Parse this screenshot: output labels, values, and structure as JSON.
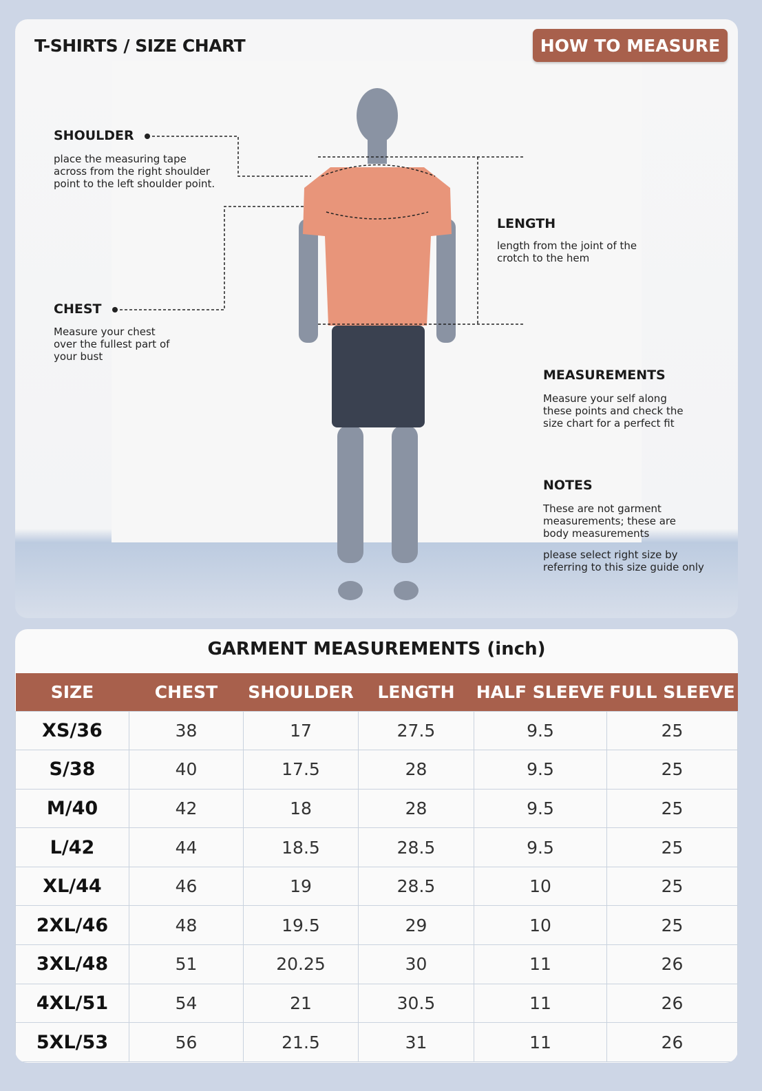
{
  "header": {
    "title": "T-SHIRTS / SIZE CHART",
    "how_to_measure": "HOW TO MEASURE"
  },
  "guide": {
    "shoulder": {
      "title": "SHOULDER",
      "text": "place the measuring tape across from the right shoulder point to the left shoulder point."
    },
    "chest": {
      "title": "CHEST",
      "text": "Measure your chest over the fullest part of your bust"
    },
    "length": {
      "title": "LENGTH",
      "text": "length from the joint of the crotch to the hem"
    },
    "measurements": {
      "title": "MEASUREMENTS",
      "text": "Measure your self along these points and check the size chart for a perfect fit"
    },
    "notes": {
      "title": "NOTES",
      "text1": "These are not garment measurements; these are body measurements",
      "text2": "please select right size by referring to this size guide only"
    }
  },
  "colors": {
    "accent": "#a8604c",
    "shirt": "#e8957a",
    "background": "#cdd6e6"
  },
  "table": {
    "title": "GARMENT MEASUREMENTS (inch)",
    "headers": [
      "SIZE",
      "CHEST",
      "SHOULDER",
      "LENGTH",
      "HALF SLEEVE",
      "FULL SLEEVE"
    ],
    "rows": [
      [
        "XS/36",
        "38",
        "17",
        "27.5",
        "9.5",
        "25"
      ],
      [
        "S/38",
        "40",
        "17.5",
        "28",
        "9.5",
        "25"
      ],
      [
        "M/40",
        "42",
        "18",
        "28",
        "9.5",
        "25"
      ],
      [
        "L/42",
        "44",
        "18.5",
        "28.5",
        "9.5",
        "25"
      ],
      [
        "XL/44",
        "46",
        "19",
        "28.5",
        "10",
        "25"
      ],
      [
        "2XL/46",
        "48",
        "19.5",
        "29",
        "10",
        "25"
      ],
      [
        "3XL/48",
        "51",
        "20.25",
        "30",
        "11",
        "26"
      ],
      [
        "4XL/51",
        "54",
        "21",
        "30.5",
        "11",
        "26"
      ],
      [
        "5XL/53",
        "56",
        "21.5",
        "31",
        "11",
        "26"
      ]
    ]
  }
}
